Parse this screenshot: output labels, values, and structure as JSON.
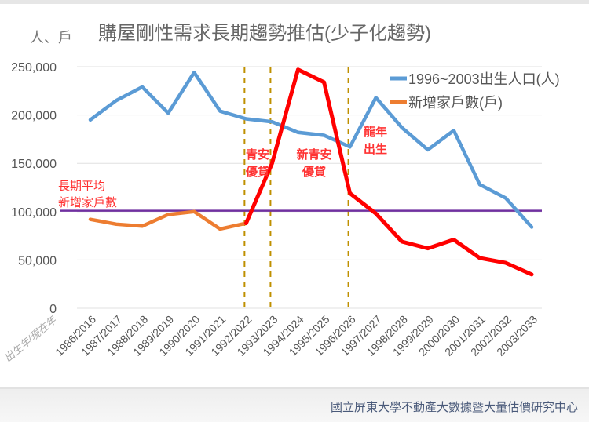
{
  "chart_data": {
    "type": "line",
    "title": "購屋剛性需求長期趨勢推估(少子化趨勢)",
    "ylabel": "人、戶",
    "xlabel": "出生年/現在年",
    "ylim": [
      0,
      250000
    ],
    "yticks": [
      "0",
      "50,000",
      "100,000",
      "150,000",
      "200,000",
      "250,000"
    ],
    "ytick_values": [
      0,
      50000,
      100000,
      150000,
      200000,
      250000
    ],
    "grid": true,
    "legend_position": "top-right",
    "categories": [
      "1986/2016",
      "1987/2017",
      "1988/2018",
      "1989/2019",
      "1990/2020",
      "1991/2021",
      "1992/2022",
      "1993/2023",
      "1994/2024",
      "1995/2025",
      "1996/2026",
      "1997/2027",
      "1998/2028",
      "1999/2029",
      "2000/2030",
      "2001/2031",
      "2002/2032",
      "2003/2033"
    ],
    "series": [
      {
        "name": "1996~2003出生人口(人)",
        "color": "#5b9bd5",
        "values": [
          195000,
          215000,
          229000,
          202000,
          244000,
          204000,
          196000,
          193000,
          182000,
          179000,
          167000,
          218000,
          187000,
          164000,
          184000,
          128000,
          114000,
          84000
        ]
      },
      {
        "name": "新增家戶數(戶)",
        "color": "#ed7d31",
        "values": [
          92000,
          87000,
          85000,
          97000,
          100000,
          82000,
          88000,
          null,
          null,
          null,
          null,
          null,
          null,
          null,
          null,
          null,
          null,
          null
        ]
      },
      {
        "color": "#ff0000",
        "values": [
          null,
          null,
          null,
          null,
          null,
          null,
          88000,
          150000,
          247000,
          234000,
          119000,
          98000,
          69000,
          62000,
          71000,
          52000,
          47000,
          35000
        ]
      }
    ],
    "reference_line": {
      "label_lines": [
        "長期平均",
        "新增家戶數"
      ],
      "value": 101000,
      "color": "#7030a0"
    },
    "vertical_markers": [
      {
        "category": "1992/2022",
        "color": "#bf9000"
      },
      {
        "category": "1993/2023",
        "color": "#bf9000"
      },
      {
        "category": "1996/2026",
        "color": "#bf9000"
      }
    ],
    "annotations": [
      {
        "lines": [
          "青安",
          "優貸"
        ],
        "color": "#ff3333"
      },
      {
        "lines": [
          "新青安",
          "優貸"
        ],
        "color": "#ff3333"
      },
      {
        "lines": [
          "龍年",
          "出生"
        ],
        "color": "#ff3333"
      }
    ]
  },
  "footer": {
    "text": "國立屏東大學不動產大數據暨大量估價研究中心"
  }
}
